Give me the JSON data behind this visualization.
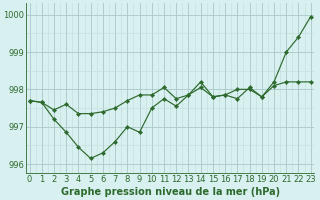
{
  "title": "Graphe pression niveau de la mer (hPa)",
  "hours": [
    0,
    1,
    2,
    3,
    4,
    5,
    6,
    7,
    8,
    9,
    10,
    11,
    12,
    13,
    14,
    15,
    16,
    17,
    18,
    19,
    20,
    21,
    22,
    23
  ],
  "line1": [
    997.7,
    997.65,
    997.2,
    996.85,
    996.45,
    996.15,
    996.3,
    996.6,
    997.0,
    996.85,
    997.5,
    997.75,
    997.55,
    997.85,
    998.2,
    997.8,
    997.85,
    997.75,
    998.05,
    997.8,
    998.2,
    999.0,
    999.4,
    999.95
  ],
  "line2": [
    997.7,
    997.65,
    997.45,
    997.6,
    997.35,
    997.35,
    997.4,
    997.5,
    997.7,
    997.85,
    997.85,
    998.05,
    997.75,
    997.85,
    998.05,
    997.8,
    997.85,
    998.0,
    998.0,
    997.8,
    998.1,
    998.2,
    998.2,
    998.2
  ],
  "line_color": "#2d6a2d",
  "bg_color": "#d9f0f0",
  "grid_color_major": "#aac8c8",
  "grid_color_minor": "#c0dcdc",
  "ylim": [
    995.75,
    1000.3
  ],
  "yticks": [
    996,
    997,
    998,
    999,
    1000
  ],
  "xlim": [
    -0.3,
    23.3
  ],
  "title_fontsize": 7.0,
  "tick_fontsize": 6.0
}
